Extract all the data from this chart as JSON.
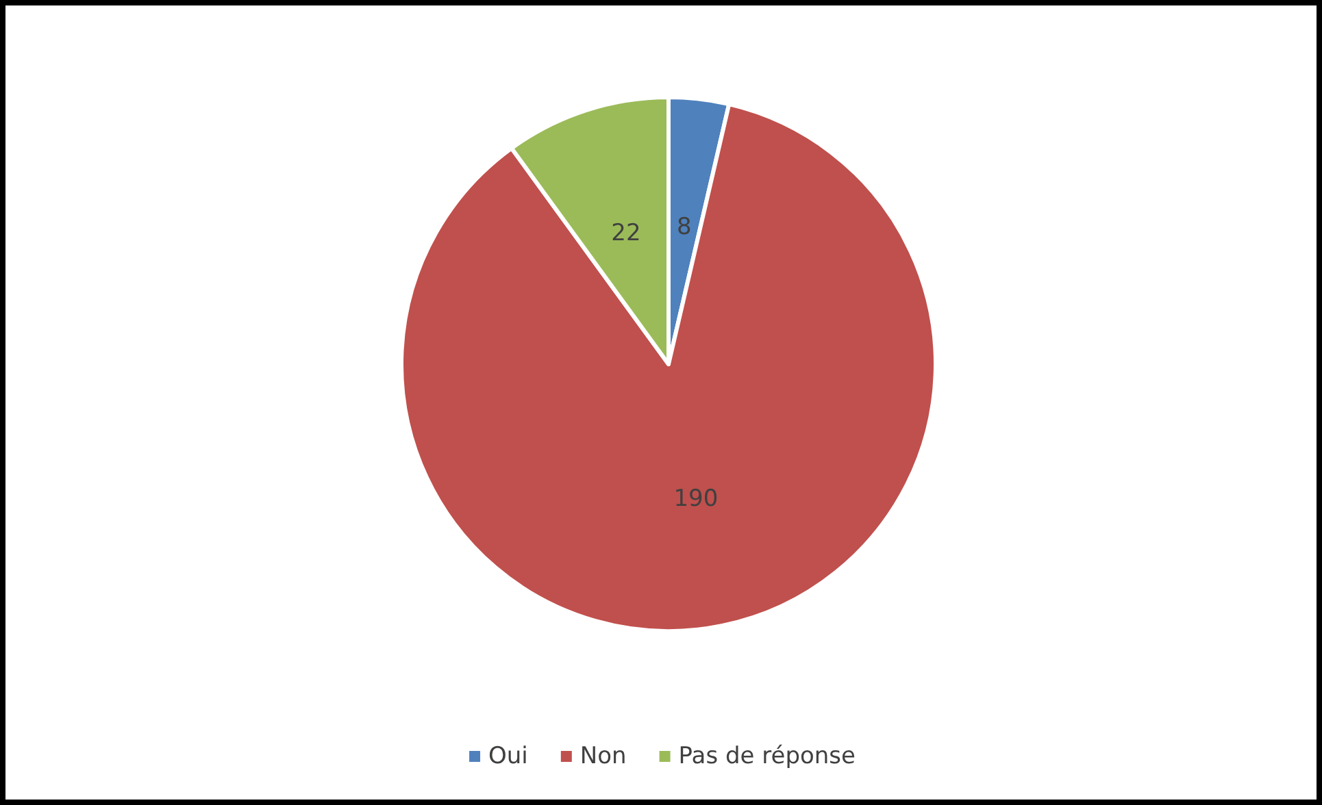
{
  "chart_data": {
    "type": "pie",
    "categories": [
      "Oui",
      "Non",
      "Pas de réponse"
    ],
    "values": [
      8,
      190,
      22
    ],
    "colors": [
      "#4f81bd",
      "#c0504d",
      "#9bbb59"
    ],
    "data_labels": true,
    "legend": "bottom"
  }
}
